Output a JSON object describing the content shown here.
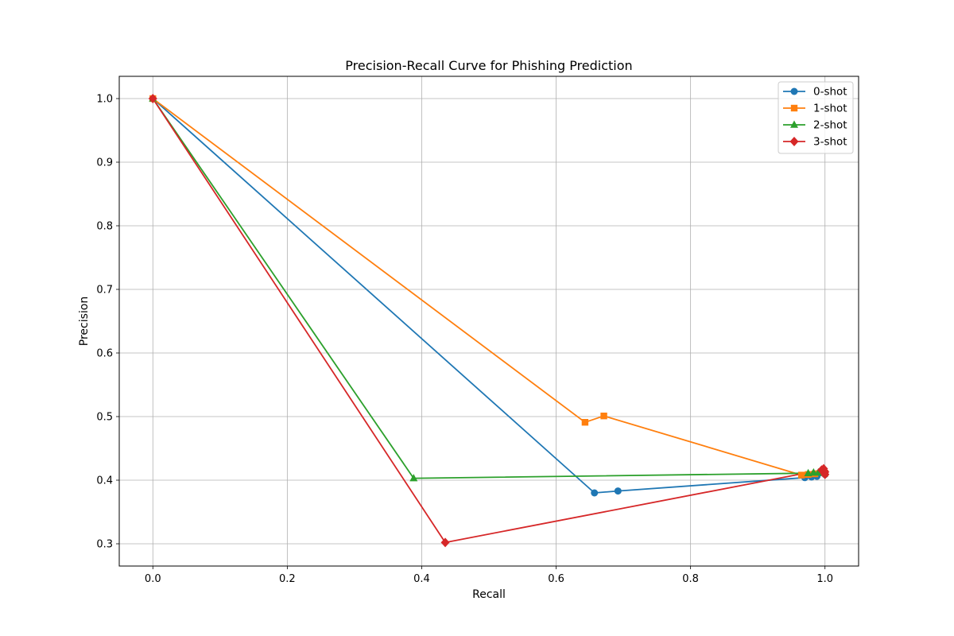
{
  "chart_data": {
    "type": "line",
    "title": "Precision-Recall Curve for Phishing Prediction",
    "xlabel": "Recall",
    "ylabel": "Precision",
    "xlim": [
      -0.05,
      1.05
    ],
    "ylim": [
      0.265,
      1.035
    ],
    "xticks": [
      0.0,
      0.2,
      0.4,
      0.6,
      0.8,
      1.0
    ],
    "xtick_labels": [
      "0.0",
      "0.2",
      "0.4",
      "0.6",
      "0.8",
      "1.0"
    ],
    "yticks": [
      0.3,
      0.4,
      0.5,
      0.6,
      0.7,
      0.8,
      0.9,
      1.0
    ],
    "ytick_labels": [
      "0.3",
      "0.4",
      "0.5",
      "0.6",
      "0.7",
      "0.8",
      "0.9",
      "1.0"
    ],
    "grid": true,
    "legend_position": "top-right",
    "series": [
      {
        "name": "0-shot",
        "color": "#1f77b4",
        "marker": "circle",
        "points": [
          [
            0.0,
            1.0
          ],
          [
            0.657,
            0.38
          ],
          [
            0.692,
            0.383
          ],
          [
            0.97,
            0.404
          ],
          [
            0.98,
            0.405
          ],
          [
            0.988,
            0.406
          ],
          [
            1.0,
            0.409
          ]
        ]
      },
      {
        "name": "1-shot",
        "color": "#ff7f0e",
        "marker": "square",
        "points": [
          [
            0.0,
            1.0
          ],
          [
            0.643,
            0.491
          ],
          [
            0.671,
            0.501
          ],
          [
            0.965,
            0.408
          ],
          [
            0.975,
            0.409
          ],
          [
            0.985,
            0.41
          ],
          [
            1.0,
            0.411
          ]
        ]
      },
      {
        "name": "2-shot",
        "color": "#2ca02c",
        "marker": "triangle",
        "points": [
          [
            0.0,
            1.0
          ],
          [
            0.388,
            0.403
          ],
          [
            0.975,
            0.411
          ],
          [
            0.983,
            0.412
          ],
          [
            0.99,
            0.412
          ],
          [
            1.0,
            0.413
          ]
        ]
      },
      {
        "name": "3-shot",
        "color": "#d62728",
        "marker": "diamond",
        "points": [
          [
            0.0,
            1.0
          ],
          [
            0.435,
            0.302
          ],
          [
            0.995,
            0.416
          ],
          [
            0.998,
            0.418
          ],
          [
            1.0,
            0.413
          ],
          [
            1.0,
            0.409
          ]
        ]
      }
    ]
  }
}
